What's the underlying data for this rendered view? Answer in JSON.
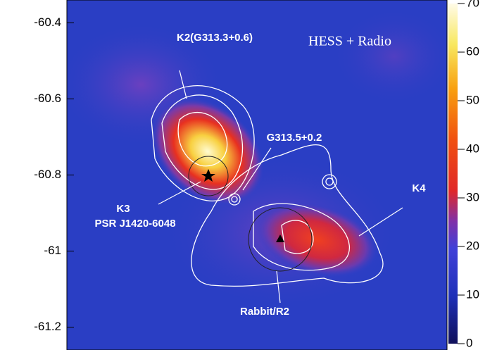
{
  "chart_data": {
    "type": "heatmap",
    "ylim": [
      -61.26,
      -60.34
    ],
    "yticks": [
      -60.4,
      -60.6,
      -60.8,
      -61,
      -61.2
    ],
    "colorbar": {
      "lim": [
        0,
        70
      ],
      "ticks": [
        0,
        10,
        20,
        30,
        40,
        50,
        60,
        70
      ]
    },
    "annotations": [
      "HESS + Radio",
      "K2(G313.3+0.6)",
      "G313.5+0.2",
      "K3",
      "PSR J1420-6048",
      "K4",
      "Rabbit/R2"
    ]
  }
}
